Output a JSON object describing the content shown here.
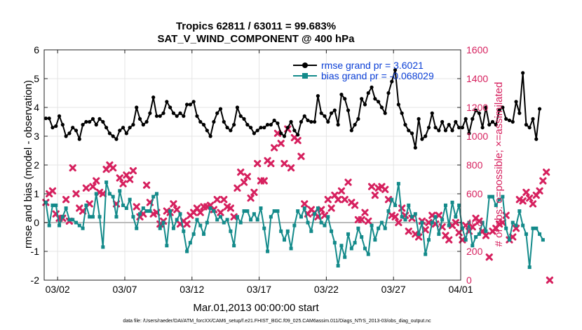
{
  "chart_data": {
    "type": "line",
    "title": "Tropics 62811 / 63011 = 99.683%",
    "subtitle": "SAT_V_WIND_COMPONENT @ 400 hPa",
    "xlabel": "Mar.01,2013 00:00:00 start",
    "ylabel": "rmse and bias (model - observation)",
    "y2label": "# of obs: o=possible; ×=assimilated",
    "xlim": [
      0,
      31
    ],
    "ylim": [
      -2,
      6
    ],
    "y2lim": [
      0,
      1600
    ],
    "x_ticks": [
      1,
      6,
      11,
      16,
      21,
      26,
      31
    ],
    "x_tick_labels": [
      "03/02",
      "03/07",
      "03/12",
      "03/17",
      "03/22",
      "03/27",
      "04/01"
    ],
    "y_ticks": [
      -2,
      -1,
      0,
      1,
      2,
      3,
      4,
      5,
      6
    ],
    "y2_ticks": [
      0,
      200,
      400,
      600,
      800,
      1000,
      1200,
      1400,
      1600
    ],
    "zero_line": 0,
    "footnote": "data file: /Users/raeder/DAI/ATM_forcXX/CAM6_setup/f.e21.FHIST_BGC.f09_025.CAM6assim.011/Diags_NTrS_2013-03/obs_diag_output.nc",
    "colors": {
      "rmse": "#000000",
      "bias": "#138a8a",
      "obs": "#d6205e",
      "legend_text": "#0b3fd6",
      "zero": "#bbbbbb"
    },
    "series": [
      {
        "name": "rmse grand pr = 3.6021",
        "axis": "left",
        "x_start": 0.125,
        "x_step": 0.25,
        "values": [
          3.62,
          3.62,
          3.3,
          3.35,
          3.7,
          3.4,
          3.0,
          3.1,
          3.3,
          3.2,
          2.9,
          3.4,
          3.5,
          3.5,
          3.6,
          3.4,
          3.6,
          3.5,
          3.3,
          3.1,
          3.0,
          2.9,
          3.2,
          3.3,
          3.1,
          3.3,
          3.4,
          4.0,
          3.6,
          3.4,
          3.5,
          3.8,
          4.35,
          3.7,
          3.7,
          3.8,
          4.2,
          4.0,
          3.8,
          3.7,
          3.8,
          3.7,
          4.1,
          4.1,
          4.2,
          3.7,
          3.5,
          3.4,
          3.2,
          3.0,
          3.5,
          3.8,
          3.95,
          3.5,
          3.3,
          3.2,
          3.4,
          4.0,
          3.7,
          3.6,
          3.4,
          3.3,
          3.1,
          3.2,
          3.3,
          3.3,
          3.4,
          3.4,
          3.55,
          3.45,
          3.1,
          3.0,
          3.3,
          3.5,
          3.2,
          3.05,
          3.5,
          3.7,
          3.55,
          3.5,
          3.5,
          4.4,
          3.8,
          3.7,
          3.5,
          3.8,
          3.9,
          3.4,
          4.45,
          4.3,
          3.9,
          3.2,
          3.4,
          3.6,
          4.3,
          4.1,
          4.5,
          4.7,
          4.3,
          4.2,
          4.0,
          3.8,
          4.5,
          4.9,
          5.3,
          4.1,
          3.8,
          3.4,
          3.2,
          3.1,
          2.6,
          3.6,
          2.9,
          3.0,
          3.3,
          3.8,
          3.3,
          3.2,
          3.5,
          3.2,
          3.4,
          3.2,
          3.5,
          3.3,
          3.3,
          3.6,
          3.1,
          3.6,
          3.9,
          3.8,
          3.3,
          4.0,
          3.4,
          3.5,
          3.4,
          3.9,
          4.0,
          3.6,
          3.55,
          3.5,
          4.2,
          3.8,
          5.2,
          3.4,
          3.3,
          3.6,
          2.9,
          3.95
        ]
      },
      {
        "name": "bias grand pr = -0.068029",
        "axis": "left",
        "x_start": 0.125,
        "x_step": 0.25,
        "values": [
          0.7,
          -0.1,
          0.6,
          0.6,
          -0.1,
          0.2,
          0.5,
          0.1,
          0.1,
          0.0,
          -0.1,
          -0.2,
          0.6,
          0.2,
          0.2,
          1.0,
          0.2,
          -0.85,
          1.4,
          1.0,
          0.9,
          0.2,
          1.1,
          0.6,
          0.5,
          0.8,
          0.2,
          -0.2,
          0.3,
          0.5,
          0.4,
          0.4,
          0.9,
          1.0,
          -0.2,
          0.0,
          -0.8,
          0.4,
          -0.2,
          0.1,
          0.3,
          -0.3,
          -1.0,
          -0.7,
          -0.4,
          0.1,
          -0.1,
          -0.4,
          0.0,
          0.5,
          0.4,
          0.1,
          0.2,
          0.0,
          0.1,
          -0.3,
          -0.8,
          0.2,
          0.0,
          0.4,
          0.4,
          0.1,
          0.3,
          0.1,
          0.5,
          -0.2,
          -1.0,
          0.2,
          0.4,
          0.4,
          -0.3,
          -0.6,
          -0.3,
          -0.9,
          -0.1,
          0.4,
          0.2,
          0.5,
          0.0,
          -0.3,
          0.3,
          0.5,
          0.0,
          -0.1,
          0.2,
          -0.3,
          -0.7,
          -1.5,
          -0.8,
          -1.2,
          -0.4,
          -0.9,
          -0.7,
          -0.2,
          -0.5,
          -0.9,
          -1.1,
          -0.1,
          -0.6,
          -0.2,
          0.0,
          -0.2,
          0.4,
          0.8,
          0.6,
          1.35,
          0.2,
          0.1,
          0.6,
          0.2,
          0.3,
          -0.4,
          0.0,
          -1.1,
          -0.6,
          0.0,
          0.2,
          -0.4,
          0.1,
          0.6,
          -0.1,
          0.7,
          0.2,
          0.6,
          -0.2,
          -0.6,
          0.0,
          -0.8,
          -0.5,
          -0.4,
          0.0,
          -0.3,
          0.9,
          0.9,
          0.6,
          0.8,
          0.9,
          -0.2,
          -0.6,
          0.0,
          -0.1,
          0.4,
          -0.1,
          -0.4,
          -1.55,
          -0.2,
          -0.2,
          -0.4,
          -0.6
        ]
      },
      {
        "name": "# of obs assimilated",
        "axis": "right",
        "marker": "x",
        "x_start": 0.125,
        "x_step": 0.25,
        "values": [
          540,
          600,
          620,
          460,
          430,
          430,
          560,
          410,
          780,
          600,
          500,
          480,
          640,
          530,
          650,
          690,
          610,
          600,
          770,
          800,
          780,
          530,
          710,
          670,
          730,
          700,
          760,
          510,
          440,
          460,
          660,
          540,
          460,
          470,
          390,
          410,
          480,
          470,
          530,
          490,
          390,
          410,
          390,
          450,
          470,
          500,
          470,
          510,
          510,
          520,
          490,
          560,
          470,
          560,
          510,
          500,
          440,
          640,
          750,
          680,
          720,
          570,
          610,
          810,
          690,
          690,
          830,
          810,
          920,
          1020,
          950,
          810,
          1050,
          780,
          990,
          970,
          860,
          530,
          460,
          490,
          470,
          440,
          490,
          450,
          560,
          500,
          590,
          560,
          620,
          560,
          680,
          540,
          520,
          420,
          420,
          470,
          410,
          650,
          590,
          640,
          650,
          630,
          560,
          450,
          440,
          400,
          500,
          450,
          340,
          430,
          320,
          300,
          410,
          350,
          400,
          450,
          390,
          450,
          370,
          310,
          280,
          380,
          400,
          330,
          280,
          380,
          340,
          370,
          430,
          410,
          340,
          310,
          160,
          340,
          360,
          390,
          400,
          450,
          280,
          300,
          360,
          560,
          550,
          610,
          570,
          530,
          590,
          620,
          690,
          750,
          0
        ]
      }
    ]
  }
}
